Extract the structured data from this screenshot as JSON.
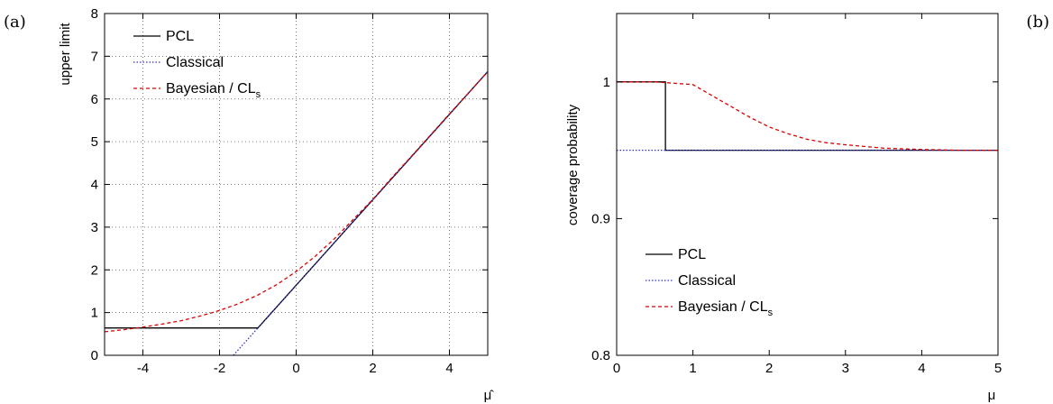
{
  "chart_data": [
    {
      "type": "line",
      "panel_label": "(a)",
      "xlabel": "μ̂",
      "ylabel": "upper limit",
      "xlim": [
        -5,
        5
      ],
      "ylim": [
        0,
        8
      ],
      "xticks": [
        "-4",
        "-2",
        "0",
        "2",
        "4"
      ],
      "xtick_values": [
        -4,
        -2,
        0,
        2,
        4
      ],
      "yticks": [
        "0",
        "1",
        "2",
        "3",
        "4",
        "5",
        "6",
        "7",
        "8"
      ],
      "ytick_values": [
        0,
        1,
        2,
        3,
        4,
        5,
        6,
        7,
        8
      ],
      "grid": true,
      "legend_position": "top-left",
      "series": [
        {
          "name": "PCL",
          "color": "#000000",
          "style": "solid",
          "x": [
            -5,
            -1,
            0,
            1,
            2,
            3,
            4,
            5
          ],
          "y": [
            0.64,
            0.64,
            1.64,
            2.64,
            3.64,
            4.64,
            5.64,
            6.64
          ]
        },
        {
          "name": "Classical",
          "color": "#3333cc",
          "style": "dotted",
          "x": [
            -1.64,
            -1,
            0,
            1,
            2,
            3,
            4,
            5
          ],
          "y": [
            0,
            0.64,
            1.64,
            2.64,
            3.64,
            4.64,
            5.64,
            6.64
          ]
        },
        {
          "name": "Bayesian / CL",
          "name_subscript": "s",
          "color": "#dd0000",
          "style": "dashed",
          "x": [
            -5,
            -4.5,
            -4,
            -3.5,
            -3,
            -2.5,
            -2,
            -1.5,
            -1,
            -0.5,
            0,
            0.5,
            1,
            1.5,
            2,
            2.5,
            3,
            3.5,
            4,
            4.5,
            5
          ],
          "y": [
            0.55,
            0.6,
            0.66,
            0.73,
            0.81,
            0.92,
            1.05,
            1.21,
            1.41,
            1.66,
            1.96,
            2.32,
            2.73,
            3.19,
            3.65,
            4.16,
            4.65,
            5.15,
            5.65,
            6.14,
            6.64
          ]
        }
      ]
    },
    {
      "type": "line",
      "panel_label": "(b)",
      "xlabel": "μ",
      "ylabel": "coverage probability",
      "xlim": [
        0,
        5
      ],
      "ylim": [
        0.8,
        1.05
      ],
      "xticks": [
        "0",
        "1",
        "2",
        "3",
        "4",
        "5"
      ],
      "xtick_values": [
        0,
        1,
        2,
        3,
        4,
        5
      ],
      "yticks": [
        "0.8",
        "0.9",
        "1"
      ],
      "ytick_values": [
        0.8,
        0.9,
        1
      ],
      "grid": false,
      "legend_position": "bottom-left",
      "series": [
        {
          "name": "PCL",
          "color": "#000000",
          "style": "solid",
          "x": [
            0,
            0.64,
            0.64,
            5
          ],
          "y": [
            1,
            1,
            0.95,
            0.95
          ]
        },
        {
          "name": "Classical",
          "color": "#3333cc",
          "style": "dotted",
          "x": [
            0,
            5
          ],
          "y": [
            0.95,
            0.95
          ]
        },
        {
          "name": "Bayesian / CL",
          "name_subscript": "s",
          "color": "#dd0000",
          "style": "dashed",
          "x": [
            0,
            0.5,
            1,
            1.25,
            1.5,
            1.75,
            2,
            2.25,
            2.5,
            2.75,
            3,
            3.5,
            4,
            4.5,
            5
          ],
          "y": [
            1,
            1,
            0.998,
            0.99,
            0.982,
            0.974,
            0.967,
            0.962,
            0.958,
            0.9555,
            0.954,
            0.9515,
            0.9505,
            0.95,
            0.95
          ]
        }
      ]
    }
  ]
}
